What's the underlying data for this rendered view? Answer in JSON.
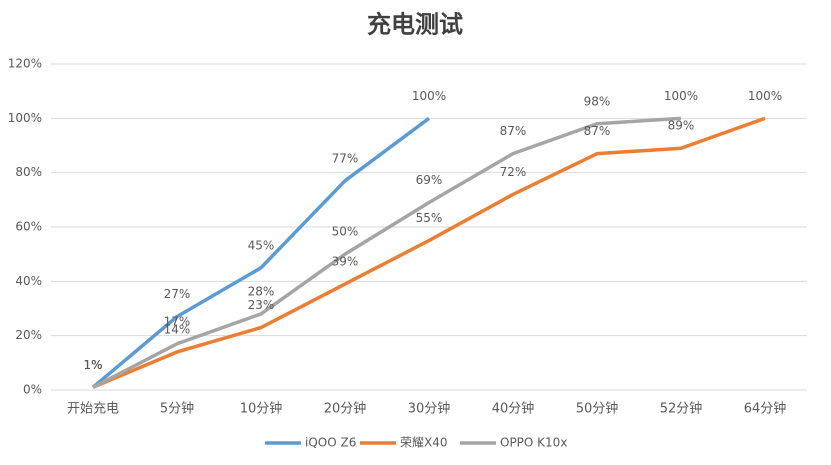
{
  "chart_data": {
    "type": "line",
    "title": "充电测试",
    "categories": [
      "开始充电",
      "5分钟",
      "10分钟",
      "20分钟",
      "30分钟",
      "40分钟",
      "50分钟",
      "52分钟",
      "64分钟"
    ],
    "series": [
      {
        "name": "iQOO Z6",
        "color": "#5b9bd5",
        "values": [
          1,
          27,
          45,
          77,
          100,
          null,
          null,
          null,
          null
        ],
        "value_labels": [
          "1%",
          "27%",
          "45%",
          "77%",
          "100%",
          null,
          null,
          null,
          null
        ]
      },
      {
        "name": "荣耀X40",
        "color": "#ed7d31",
        "values": [
          1,
          14,
          23,
          39,
          55,
          72,
          87,
          89,
          100
        ],
        "value_labels": [
          "1%",
          "14%",
          "23%",
          "39%",
          "55%",
          "72%",
          "87%",
          "89%",
          "100%"
        ]
      },
      {
        "name": "OPPO K10x",
        "color": "#a5a5a5",
        "values": [
          1,
          17,
          28,
          50,
          69,
          87,
          98,
          100,
          null
        ],
        "value_labels": [
          "1%",
          "17%",
          "28%",
          "50%",
          "69%",
          "87%",
          "98%",
          "100%",
          null
        ]
      }
    ],
    "ylim": [
      0,
      120
    ],
    "yticks": [
      {
        "value": 0,
        "label": "0%"
      },
      {
        "value": 20,
        "label": "20%"
      },
      {
        "value": 40,
        "label": "40%"
      },
      {
        "value": 60,
        "label": "60%"
      },
      {
        "value": 80,
        "label": "80%"
      },
      {
        "value": 100,
        "label": "100%"
      },
      {
        "value": 120,
        "label": "120%"
      }
    ],
    "grid": true,
    "legend": "bottom"
  }
}
